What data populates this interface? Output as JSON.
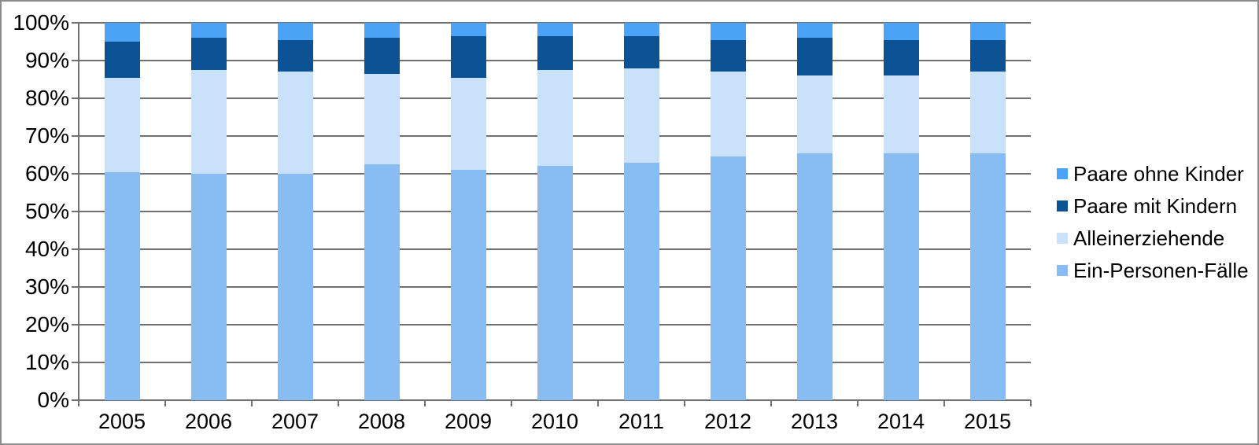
{
  "window": {
    "background_color": "#ffffff",
    "border_color": "#8c8c8c"
  },
  "chart_data": {
    "type": "bar",
    "subtype": "stacked-100-percent-column",
    "title": "",
    "xlabel": "",
    "ylabel": "",
    "categories": [
      "2005",
      "2006",
      "2007",
      "2008",
      "2009",
      "2010",
      "2011",
      "2012",
      "2013",
      "2014",
      "2015"
    ],
    "series": [
      {
        "name": "Ein-Personen-Fälle",
        "color": "#87bdf3",
        "values": [
          60.5,
          60.0,
          60.0,
          62.5,
          61.0,
          62.0,
          63.0,
          64.5,
          65.5,
          65.5,
          65.5
        ]
      },
      {
        "name": "Alleinerziehende",
        "color": "#c9e1fa",
        "values": [
          25.0,
          27.5,
          27.0,
          24.0,
          24.5,
          25.5,
          25.0,
          22.5,
          20.5,
          20.5,
          21.5
        ]
      },
      {
        "name": "Paare mit Kindern",
        "color": "#0b5394",
        "values": [
          9.5,
          8.5,
          8.5,
          9.5,
          11.0,
          9.0,
          8.5,
          8.5,
          10.0,
          9.5,
          8.5
        ]
      },
      {
        "name": "Paare ohne Kinder",
        "color": "#4ba3f5",
        "values": [
          5.0,
          4.0,
          4.5,
          4.0,
          3.5,
          3.5,
          3.5,
          4.5,
          4.0,
          4.5,
          4.5
        ]
      }
    ],
    "y_axis": {
      "min": 0,
      "max": 100,
      "step": 10,
      "tick_labels": [
        "0%",
        "10%",
        "20%",
        "30%",
        "40%",
        "50%",
        "60%",
        "70%",
        "80%",
        "90%",
        "100%"
      ]
    },
    "grid": true,
    "grid_color": "#707070",
    "legend": {
      "position": "right",
      "order": [
        "Paare ohne Kinder",
        "Paare mit Kindern",
        "Alleinerziehende",
        "Ein-Personen-Fälle"
      ]
    }
  }
}
